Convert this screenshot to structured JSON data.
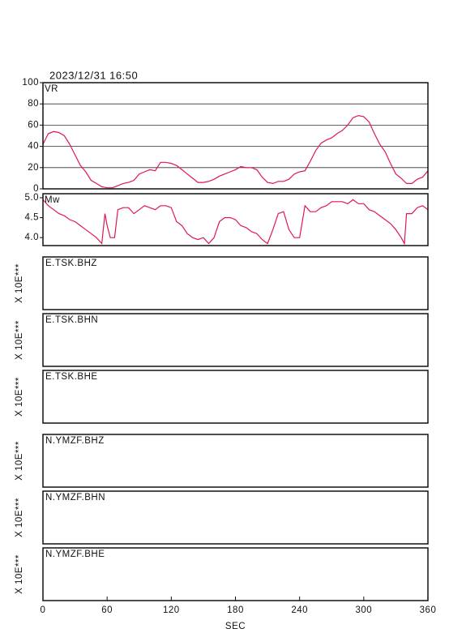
{
  "title": "2023/12/31 16:50",
  "x_axis": {
    "xlim": [
      0,
      360
    ],
    "xticks": [
      0,
      60,
      120,
      180,
      240,
      300,
      360
    ],
    "xlabel": "SEC"
  },
  "chart_data": [
    {
      "type": "line",
      "label": "VR",
      "color": "#e0174f",
      "grid": true,
      "ylim": [
        0,
        100
      ],
      "yticks": [
        0,
        20,
        40,
        60,
        80,
        100
      ],
      "x": [
        0,
        5,
        10,
        15,
        20,
        25,
        30,
        35,
        40,
        45,
        50,
        55,
        60,
        65,
        70,
        75,
        80,
        85,
        90,
        95,
        100,
        105,
        110,
        115,
        120,
        125,
        130,
        135,
        140,
        145,
        150,
        155,
        160,
        165,
        170,
        175,
        180,
        185,
        190,
        195,
        200,
        205,
        210,
        215,
        220,
        225,
        230,
        235,
        240,
        245,
        250,
        255,
        260,
        265,
        270,
        275,
        280,
        285,
        290,
        295,
        300,
        305,
        310,
        315,
        320,
        325,
        330,
        335,
        340,
        345,
        350,
        355,
        360
      ],
      "values": [
        42,
        52,
        54,
        53,
        50,
        42,
        32,
        22,
        16,
        8,
        5,
        2,
        1,
        1,
        3,
        5,
        6,
        8,
        14,
        16,
        18,
        17,
        25,
        25,
        24,
        22,
        18,
        14,
        10,
        6,
        6,
        7,
        9,
        12,
        14,
        16,
        18,
        21,
        20,
        20,
        18,
        11,
        6,
        5,
        7,
        7,
        9,
        14,
        16,
        17,
        26,
        36,
        43,
        46,
        48,
        52,
        55,
        60,
        67,
        69,
        68,
        63,
        52,
        42,
        35,
        24,
        14,
        10,
        5,
        5,
        9,
        11,
        17
      ]
    },
    {
      "type": "line",
      "label": "Mw",
      "color": "#e0174f",
      "grid": false,
      "ylim": [
        3.8,
        5.1
      ],
      "yticks": [
        {
          "value": 4,
          "label": "4.0"
        },
        4.5,
        {
          "value": 5,
          "label": "5.0"
        }
      ],
      "x": [
        0,
        5,
        10,
        15,
        20,
        25,
        30,
        35,
        40,
        45,
        50,
        55,
        58,
        60,
        63,
        67,
        70,
        75,
        80,
        85,
        90,
        95,
        100,
        105,
        110,
        115,
        120,
        125,
        130,
        135,
        140,
        145,
        150,
        155,
        160,
        165,
        170,
        175,
        180,
        185,
        190,
        195,
        200,
        205,
        210,
        215,
        220,
        225,
        230,
        235,
        240,
        245,
        250,
        255,
        260,
        265,
        270,
        275,
        280,
        285,
        290,
        295,
        300,
        305,
        310,
        315,
        320,
        325,
        330,
        335,
        338,
        340,
        345,
        350,
        355,
        360
      ],
      "values": [
        4.95,
        4.8,
        4.7,
        4.6,
        4.55,
        4.45,
        4.4,
        4.3,
        4.2,
        4.1,
        4.0,
        3.85,
        4.6,
        4.3,
        4.0,
        4.0,
        4.7,
        4.75,
        4.75,
        4.6,
        4.7,
        4.8,
        4.75,
        4.7,
        4.8,
        4.8,
        4.75,
        4.4,
        4.3,
        4.1,
        4.0,
        3.95,
        4.0,
        3.85,
        4.0,
        4.4,
        4.5,
        4.5,
        4.45,
        4.3,
        4.25,
        4.15,
        4.1,
        3.95,
        3.85,
        4.2,
        4.6,
        4.65,
        4.2,
        4.0,
        4.0,
        4.8,
        4.65,
        4.65,
        4.75,
        4.8,
        4.9,
        4.9,
        4.9,
        4.85,
        4.95,
        4.85,
        4.85,
        4.7,
        4.65,
        4.55,
        4.45,
        4.35,
        4.2,
        4.0,
        3.85,
        4.6,
        4.6,
        4.75,
        4.8,
        4.7
      ]
    }
  ],
  "panels": [
    {
      "label": "E.TSK.BHZ",
      "scale_label": "X 10E***"
    },
    {
      "label": "E.TSK.BHN",
      "scale_label": "X 10E***"
    },
    {
      "label": "E.TSK.BHE",
      "scale_label": "X 10E***"
    },
    {
      "label": "N.YMZF.BHZ",
      "scale_label": "X 10E***"
    },
    {
      "label": "N.YMZF.BHN",
      "scale_label": "X 10E***"
    },
    {
      "label": "N.YMZF.BHE",
      "scale_label": "X 10E***"
    }
  ]
}
